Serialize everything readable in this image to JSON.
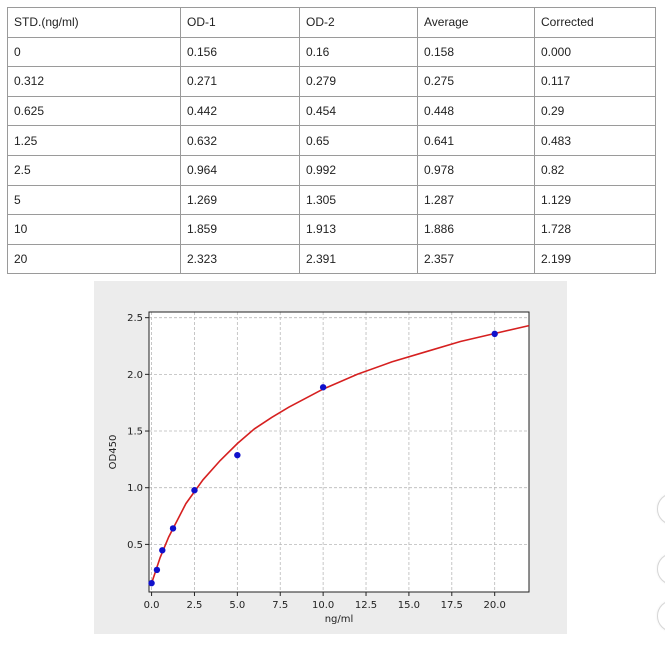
{
  "table": {
    "headers": [
      "STD.(ng/ml)",
      "OD-1",
      "OD-2",
      "Average",
      "Corrected"
    ],
    "rows": [
      [
        "0",
        "0.156",
        "0.16",
        "0.158",
        "0.000"
      ],
      [
        "0.312",
        "0.271",
        "0.279",
        "0.275",
        "0.117"
      ],
      [
        "0.625",
        "0.442",
        "0.454",
        "0.448",
        "0.29"
      ],
      [
        "1.25",
        "0.632",
        "0.65",
        "0.641",
        "0.483"
      ],
      [
        "2.5",
        "0.964",
        "0.992",
        "0.978",
        "0.82"
      ],
      [
        "5",
        "1.269",
        "1.305",
        "1.287",
        "1.129"
      ],
      [
        "10",
        "1.859",
        "1.913",
        "1.886",
        "1.728"
      ],
      [
        "20",
        "2.323",
        "2.391",
        "2.357",
        "2.199"
      ]
    ]
  },
  "chart_data": {
    "type": "scatter",
    "xlabel": "ng/ml",
    "ylabel": "OD450",
    "xlim": [
      -0.15,
      22
    ],
    "ylim": [
      0.08,
      2.55
    ],
    "xticks": [
      "0.0",
      "2.5",
      "5.0",
      "7.5",
      "10.0",
      "12.5",
      "15.0",
      "17.5",
      "20.0"
    ],
    "yticks": [
      "0.5",
      "1.0",
      "1.5",
      "2.0",
      "2.5"
    ],
    "grid": true,
    "points": {
      "x": [
        0,
        0.312,
        0.625,
        1.25,
        2.5,
        5,
        10,
        20
      ],
      "y": [
        0.158,
        0.275,
        0.448,
        0.641,
        0.978,
        1.287,
        1.886,
        2.357
      ],
      "color": "#1010cc"
    },
    "fit_curve": {
      "color": "#d62020",
      "x": [
        0,
        0.5,
        1,
        2,
        3,
        4,
        5,
        6,
        7,
        8,
        10,
        12,
        14,
        16,
        18,
        20,
        22
      ],
      "y": [
        0.158,
        0.385,
        0.565,
        0.86,
        1.07,
        1.24,
        1.39,
        1.52,
        1.62,
        1.71,
        1.87,
        2.0,
        2.11,
        2.2,
        2.29,
        2.36,
        2.43
      ]
    }
  },
  "edge_controls": [
    "circle-button",
    "circle-button",
    "circle-button"
  ]
}
